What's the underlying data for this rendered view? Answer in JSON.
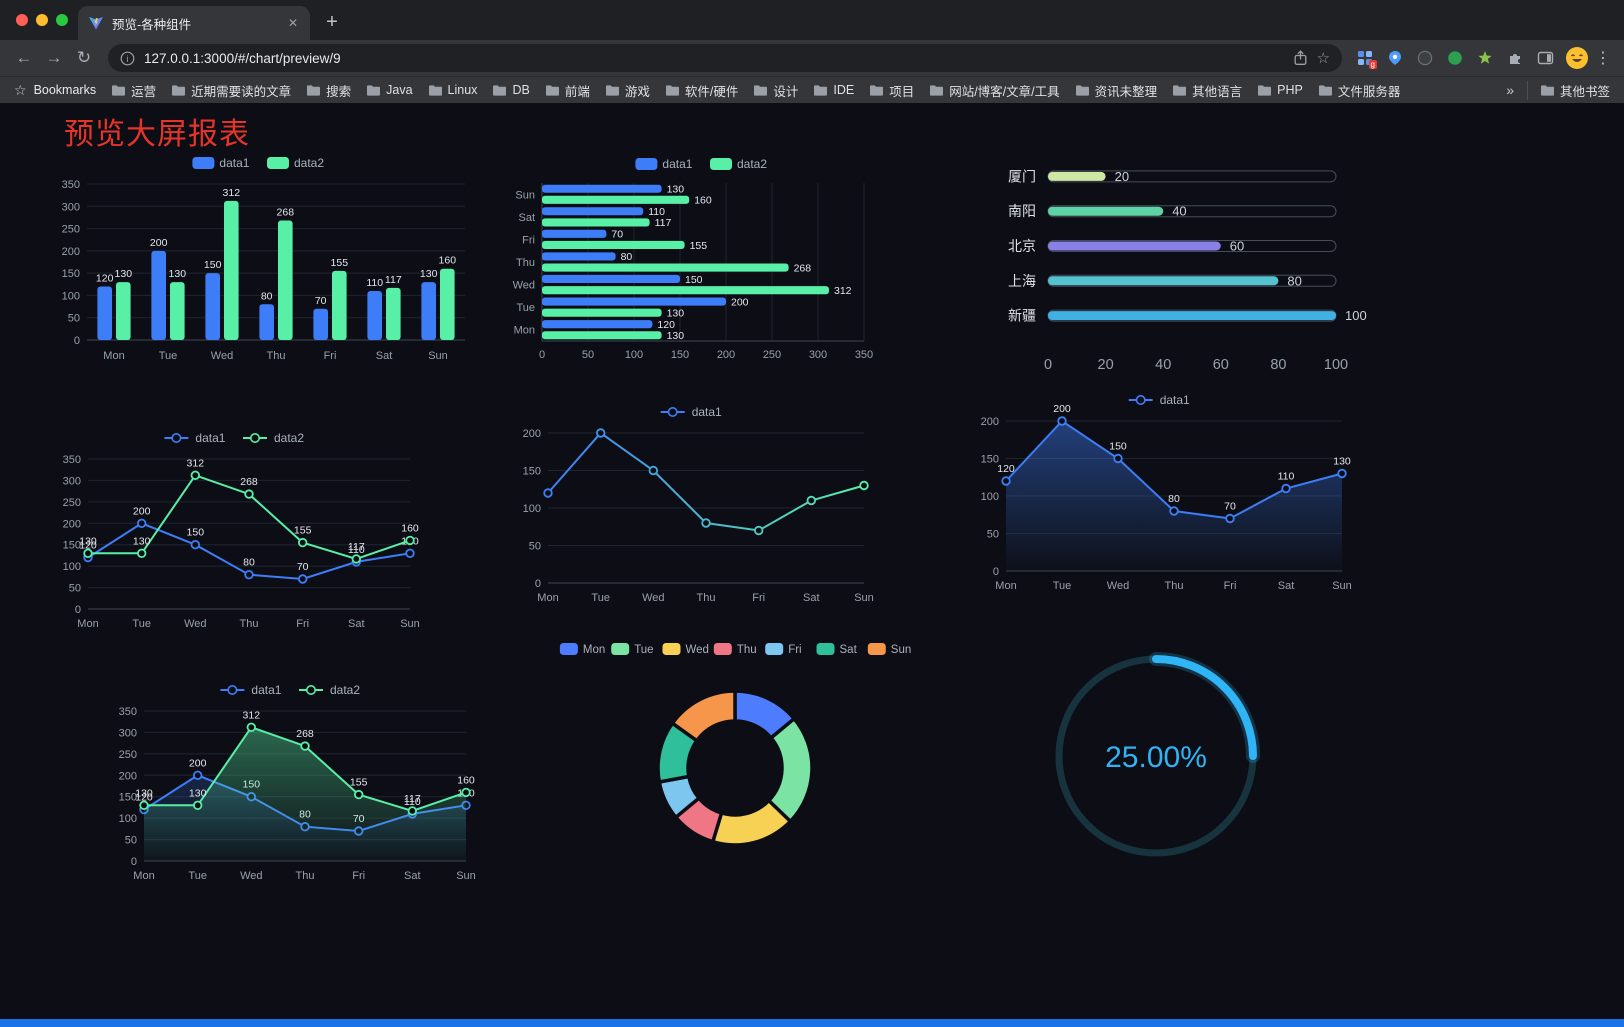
{
  "browser": {
    "tab_title": "预览-各种组件",
    "url": "127.0.0.1:3000/#/chart/preview/9",
    "bookmarks_label": "Bookmarks",
    "bookmarks": [
      "运营",
      "近期需要读的文章",
      "搜索",
      "Java",
      "Linux",
      "DB",
      "前端",
      "游戏",
      "软件/硬件",
      "设计",
      "IDE",
      "项目",
      "网站/博客/文章/工具",
      "资讯未整理",
      "其他语言",
      "PHP",
      "文件服务器"
    ],
    "bookmarks_overflow": "»",
    "other_bookmarks": "其他书签",
    "icons": {
      "back": "←",
      "forward": "→",
      "reload": "↻",
      "more": "⋮",
      "tab_close": "✕",
      "new_tab": "+",
      "bookmark_star": "☆",
      "omnibox_star": "☆"
    }
  },
  "page": {
    "title": "预览大屏报表",
    "title_color": "#e5342a",
    "background": "#0d0e15",
    "footer_color": "#1a73e8"
  },
  "chart_data": [
    {
      "id": "bar-vertical",
      "type": "bar",
      "categories": [
        "Mon",
        "Tue",
        "Wed",
        "Thu",
        "Fri",
        "Sat",
        "Sun"
      ],
      "series": [
        {
          "name": "data1",
          "color": "#3D7EF8",
          "values": [
            120,
            200,
            150,
            80,
            70,
            110,
            130
          ]
        },
        {
          "name": "data2",
          "color": "#58EFA6",
          "values": [
            130,
            130,
            312,
            268,
            155,
            117,
            160
          ]
        }
      ],
      "ylim": [
        0,
        350
      ],
      "ytick_step": 50,
      "labels": true,
      "legend_position": "top",
      "grid": true
    },
    {
      "id": "bar-horizontal",
      "type": "hbar",
      "categories": [
        "Mon",
        "Tue",
        "Wed",
        "Thu",
        "Fri",
        "Sat",
        "Sun"
      ],
      "series": [
        {
          "name": "data1",
          "color": "#3D7EF8",
          "values": [
            120,
            200,
            150,
            80,
            70,
            110,
            130
          ]
        },
        {
          "name": "data2",
          "color": "#58EFA6",
          "values": [
            130,
            130,
            312,
            268,
            155,
            117,
            160
          ]
        }
      ],
      "xlim": [
        0,
        350
      ],
      "xtick_step": 50,
      "labels": true,
      "legend_position": "top",
      "grid": true
    },
    {
      "id": "bar-progress",
      "type": "progress",
      "categories": [
        "厦门",
        "南阳",
        "北京",
        "上海",
        "新疆"
      ],
      "values": [
        20,
        40,
        60,
        80,
        100
      ],
      "colors": [
        "#cfe7a4",
        "#5dd3a6",
        "#8a80e8",
        "#54c3cf",
        "#3fb1e3"
      ],
      "xlim": [
        0,
        100
      ],
      "xticks": [
        0,
        20,
        40,
        60,
        80,
        100
      ]
    },
    {
      "id": "line-two",
      "type": "line",
      "categories": [
        "Mon",
        "Tue",
        "Wed",
        "Thu",
        "Fri",
        "Sat",
        "Sun"
      ],
      "series": [
        {
          "name": "data1",
          "color": "#3D7EF8",
          "values": [
            120,
            200,
            150,
            80,
            70,
            110,
            130
          ]
        },
        {
          "name": "data2",
          "color": "#58EFA6",
          "values": [
            130,
            130,
            312,
            268,
            155,
            117,
            160
          ]
        }
      ],
      "ylim": [
        0,
        350
      ],
      "ytick_step": 50,
      "labels": true,
      "legend_position": "top",
      "grid": true
    },
    {
      "id": "line-gradient",
      "type": "line",
      "categories": [
        "Mon",
        "Tue",
        "Wed",
        "Thu",
        "Fri",
        "Sat",
        "Sun"
      ],
      "series": [
        {
          "name": "data1",
          "color": "#3D7EF8",
          "color_end": "#58EFA6",
          "values": [
            120,
            200,
            150,
            80,
            70,
            110,
            130
          ]
        }
      ],
      "ylim": [
        0,
        200
      ],
      "ytick_step": 50,
      "labels": false,
      "legend_position": "top",
      "grid": true
    },
    {
      "id": "line-area",
      "type": "line",
      "categories": [
        "Mon",
        "Tue",
        "Wed",
        "Thu",
        "Fri",
        "Sat",
        "Sun"
      ],
      "series": [
        {
          "name": "data1",
          "color": "#3D7EF8",
          "values": [
            120,
            200,
            150,
            80,
            70,
            110,
            130
          ],
          "area": 0.45
        }
      ],
      "ylim": [
        0,
        200
      ],
      "ytick_step": 50,
      "labels": true,
      "legend_position": "top",
      "grid": true
    },
    {
      "id": "line-area-two",
      "type": "line",
      "categories": [
        "Mon",
        "Tue",
        "Wed",
        "Thu",
        "Fri",
        "Sat",
        "Sun"
      ],
      "series": [
        {
          "name": "data1",
          "color": "#3D7EF8",
          "values": [
            120,
            200,
            150,
            80,
            70,
            110,
            130
          ],
          "area": 0.22
        },
        {
          "name": "data2",
          "color": "#58EFA6",
          "values": [
            130,
            130,
            312,
            268,
            155,
            117,
            160
          ],
          "area": 0.4
        }
      ],
      "ylim": [
        0,
        350
      ],
      "ytick_step": 50,
      "labels": true,
      "legend_position": "top",
      "grid": true
    },
    {
      "id": "donut",
      "type": "donut",
      "items": [
        {
          "label": "Mon",
          "color": "#4D7CFE",
          "value": 120
        },
        {
          "label": "Tue",
          "color": "#7BE3A4",
          "value": 200
        },
        {
          "label": "Wed",
          "color": "#F7D154",
          "value": 150
        },
        {
          "label": "Thu",
          "color": "#EF7785",
          "value": 80
        },
        {
          "label": "Fri",
          "color": "#7CC6EF",
          "value": 70
        },
        {
          "label": "Sat",
          "color": "#2FBF9B",
          "value": 110
        },
        {
          "label": "Sun",
          "color": "#F6964A",
          "value": 130
        }
      ],
      "legend_position": "top"
    },
    {
      "id": "gauge",
      "type": "gauge",
      "value": 25,
      "label": "25.00%",
      "color": "#2FB4F5",
      "track_color": "#17333E"
    }
  ]
}
